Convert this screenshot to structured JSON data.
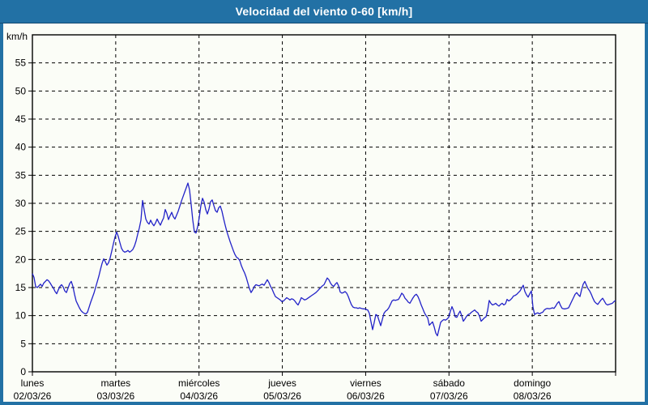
{
  "window": {
    "title": "Velocidad del viento 0-60 [km/h]"
  },
  "colors": {
    "titlebar_bg": "#2271a5",
    "frame": "#2271a5",
    "content_bg": "#fbfdf7",
    "plot_border": "#000000",
    "grid": "#000000",
    "line": "#2222c8",
    "title_text": "#ffffff",
    "label_text": "#000000"
  },
  "chart_data": {
    "type": "line",
    "title": "Velocidad del viento 0-60 [km/h]",
    "ylabel": "km/h",
    "xlabel": "",
    "ylim": [
      0,
      60
    ],
    "ytick_step": 5,
    "grid": "dashed",
    "legend_position": "none",
    "x_axis_days": [
      {
        "label": "lunes",
        "date": "02/03/26"
      },
      {
        "label": "martes",
        "date": "03/03/26"
      },
      {
        "label": "miércoles",
        "date": "04/03/26"
      },
      {
        "label": "jueves",
        "date": "05/03/26"
      },
      {
        "label": "viernes",
        "date": "06/03/26"
      },
      {
        "label": "sábado",
        "date": "07/03/26"
      },
      {
        "label": "domingo",
        "date": "08/03/26"
      }
    ],
    "x_range_days": [
      0,
      7
    ],
    "series": [
      {
        "name": "velocidad-del-viento",
        "unit": "km/h",
        "color": "#2222c8",
        "sampling": "uniform over 7 days",
        "values": [
          17.5,
          16.8,
          15.2,
          15.0,
          15.3,
          15.6,
          15.2,
          15.8,
          16.1,
          16.4,
          16.2,
          15.8,
          15.3,
          14.9,
          14.3,
          13.9,
          14.6,
          15.2,
          15.5,
          15.1,
          14.4,
          14.1,
          14.9,
          15.7,
          16.1,
          15.2,
          13.8,
          12.6,
          12.0,
          11.4,
          10.9,
          10.6,
          10.4,
          10.3,
          10.6,
          11.5,
          12.4,
          13.2,
          14.0,
          15.0,
          16.0,
          17.0,
          18.2,
          19.3,
          20.1,
          19.6,
          19.0,
          19.4,
          20.3,
          21.5,
          22.8,
          24.0,
          24.9,
          24.1,
          23.0,
          22.0,
          21.5,
          21.3,
          21.4,
          21.6,
          21.3,
          21.5,
          21.8,
          22.4,
          23.3,
          24.5,
          25.6,
          27.0,
          30.5,
          28.8,
          27.2,
          26.6,
          26.3,
          27.0,
          26.4,
          26.0,
          26.5,
          27.2,
          26.6,
          26.1,
          26.8,
          27.4,
          28.9,
          28.2,
          27.1,
          27.8,
          28.4,
          27.6,
          27.2,
          27.9,
          28.6,
          29.5,
          30.4,
          31.2,
          32.0,
          32.8,
          33.6,
          32.4,
          29.8,
          27.0,
          24.9,
          24.7,
          25.8,
          27.5,
          29.6,
          30.9,
          30.2,
          28.9,
          28.1,
          29.0,
          30.3,
          30.6,
          29.6,
          28.7,
          28.4,
          29.2,
          29.5,
          28.6,
          27.3,
          26.1,
          25.0,
          24.1,
          23.2,
          22.4,
          21.6,
          20.9,
          20.4,
          20.2,
          19.8,
          18.9,
          18.2,
          17.6,
          16.8,
          15.8,
          14.8,
          14.1,
          14.6,
          15.2,
          15.5,
          15.4,
          15.3,
          15.5,
          15.6,
          15.4,
          15.9,
          16.4,
          15.9,
          15.2,
          14.7,
          14.0,
          13.4,
          13.2,
          13.0,
          12.8,
          12.5,
          12.6,
          12.9,
          13.2,
          13.0,
          12.8,
          13.0,
          12.9,
          12.6,
          12.2,
          11.9,
          12.5,
          13.2,
          13.0,
          12.8,
          12.9,
          13.1,
          13.3,
          13.5,
          13.7,
          13.9,
          14.1,
          14.4,
          14.7,
          15.0,
          15.3,
          15.5,
          16.1,
          16.7,
          16.4,
          15.8,
          15.4,
          15.2,
          15.6,
          15.9,
          15.3,
          14.2,
          14.0,
          14.1,
          14.3,
          14.0,
          13.4,
          12.6,
          11.9,
          11.5,
          11.4,
          11.4,
          11.3,
          11.4,
          11.3,
          11.2,
          11.2,
          11.1,
          11.0,
          10.4,
          8.9,
          7.5,
          8.8,
          10.2,
          10.0,
          9.1,
          8.2,
          9.3,
          10.4,
          10.8,
          11.0,
          11.4,
          12.0,
          12.6,
          12.8,
          12.7,
          12.8,
          12.9,
          13.4,
          14.0,
          13.7,
          13.1,
          12.8,
          12.4,
          12.2,
          12.7,
          13.2,
          13.6,
          13.8,
          13.4,
          12.7,
          11.9,
          11.2,
          10.5,
          10.0,
          9.6,
          8.3,
          8.6,
          8.9,
          8.0,
          6.9,
          6.4,
          7.6,
          8.8,
          9.1,
          9.3,
          9.2,
          9.4,
          9.7,
          10.8,
          11.6,
          10.9,
          9.8,
          9.7,
          10.3,
          10.8,
          10.0,
          9.0,
          9.4,
          9.9,
          10.2,
          10.3,
          10.6,
          10.8,
          11.0,
          10.7,
          10.5,
          9.9,
          9.0,
          9.3,
          9.6,
          9.8,
          10.9,
          12.7,
          12.2,
          11.9,
          12.0,
          12.2,
          11.9,
          11.7,
          12.0,
          12.2,
          11.9,
          12.1,
          12.9,
          12.6,
          12.8,
          13.1,
          13.5,
          13.6,
          13.8,
          14.1,
          14.4,
          14.9,
          15.4,
          14.3,
          13.7,
          13.3,
          13.9,
          14.4,
          11.5,
          10.2,
          10.4,
          10.5,
          10.3,
          10.5,
          10.6,
          11.0,
          11.2,
          11.3,
          11.2,
          11.3,
          11.4,
          11.3,
          11.7,
          12.2,
          12.5,
          11.8,
          11.3,
          11.2,
          11.2,
          11.3,
          11.4,
          12.0,
          12.6,
          13.2,
          13.8,
          14.1,
          13.7,
          13.4,
          14.6,
          15.6,
          16.1,
          15.4,
          14.8,
          14.4,
          13.8,
          13.1,
          12.5,
          12.2,
          12.0,
          12.4,
          12.8,
          13.1,
          12.6,
          12.1,
          11.9,
          12.0,
          12.1,
          12.2,
          12.5,
          12.7
        ]
      }
    ]
  }
}
